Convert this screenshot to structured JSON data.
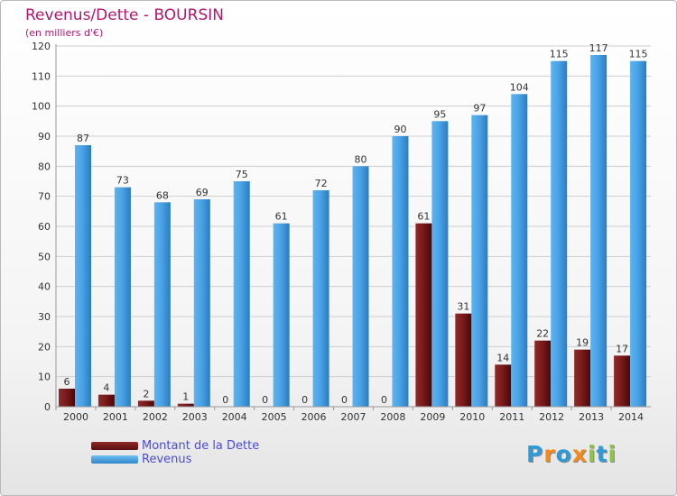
{
  "title": "Revenus/Dette - BOURSIN",
  "subtitle": "(en milliers d'€)",
  "colors": {
    "dette": "#7a1a1a",
    "revenus": "#4aa3e6",
    "title": "#b0166f",
    "legend_text": "#4b4bd6"
  },
  "legend": {
    "items": [
      {
        "label": "Montant de la Dette",
        "color": "#7a1a1a"
      },
      {
        "label": "Revenus",
        "color": "#4aa3e6"
      }
    ]
  },
  "logo": {
    "text": "Proxiti",
    "letters": [
      {
        "char": "P",
        "color": "#2e9ad8"
      },
      {
        "char": "r",
        "color": "#f08a1c"
      },
      {
        "char": "o",
        "color": "#2e9ad8"
      },
      {
        "char": "x",
        "color": "#f08a1c"
      },
      {
        "char": "i",
        "color": "#8cc63f"
      },
      {
        "char": "t",
        "color": "#2e9ad8"
      },
      {
        "char": "i",
        "color": "#8cc63f"
      }
    ]
  },
  "chart_data": {
    "type": "bar",
    "title": "Revenus/Dette - BOURSIN",
    "subtitle": "(en milliers d'€)",
    "xlabel": "",
    "ylabel": "",
    "ylim": [
      0,
      120
    ],
    "yticks": [
      0,
      10,
      20,
      30,
      40,
      50,
      60,
      70,
      80,
      90,
      100,
      110,
      120
    ],
    "grid": true,
    "legend_position": "bottom-left",
    "categories": [
      "2000",
      "2001",
      "2002",
      "2003",
      "2004",
      "2005",
      "2006",
      "2007",
      "2008",
      "2009",
      "2010",
      "2011",
      "2012",
      "2013",
      "2014"
    ],
    "series": [
      {
        "name": "Montant de la Dette",
        "color": "#7a1a1a",
        "values": [
          6,
          4,
          2,
          1,
          0,
          0,
          0,
          0,
          0,
          61,
          31,
          14,
          22,
          19,
          17
        ]
      },
      {
        "name": "Revenus",
        "color": "#4aa3e6",
        "values": [
          87,
          73,
          68,
          69,
          75,
          61,
          72,
          80,
          90,
          95,
          97,
          104,
          115,
          117,
          115
        ]
      }
    ]
  }
}
